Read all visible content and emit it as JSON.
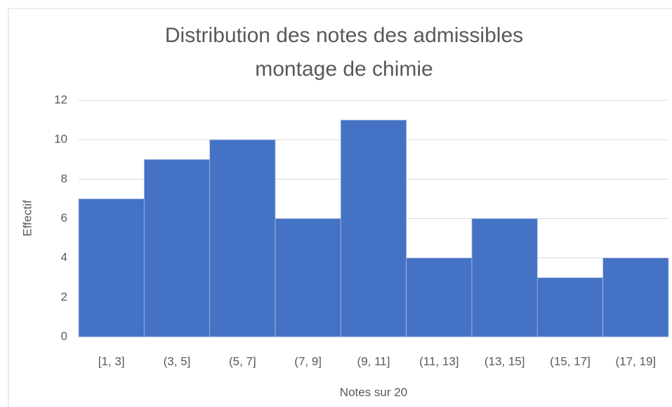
{
  "chart_data": {
    "type": "bar",
    "title": [
      "Distribution des notes des admissibles",
      "montage de chimie"
    ],
    "x_label": "Notes sur 20",
    "y_label": "Effectif",
    "categories": [
      "[1, 3]",
      "(3, 5]",
      "(5, 7]",
      "(7, 9]",
      "(9, 11]",
      "(11, 13]",
      "(13, 15]",
      "(15, 17]",
      "(17, 19]"
    ],
    "values": [
      7,
      9,
      10,
      6,
      11,
      4,
      6,
      3,
      4
    ],
    "color": "#4472c4",
    "ylim": [
      0,
      12
    ],
    "yticks": [
      0,
      2,
      4,
      6,
      8,
      10,
      12
    ],
    "grid": true
  }
}
